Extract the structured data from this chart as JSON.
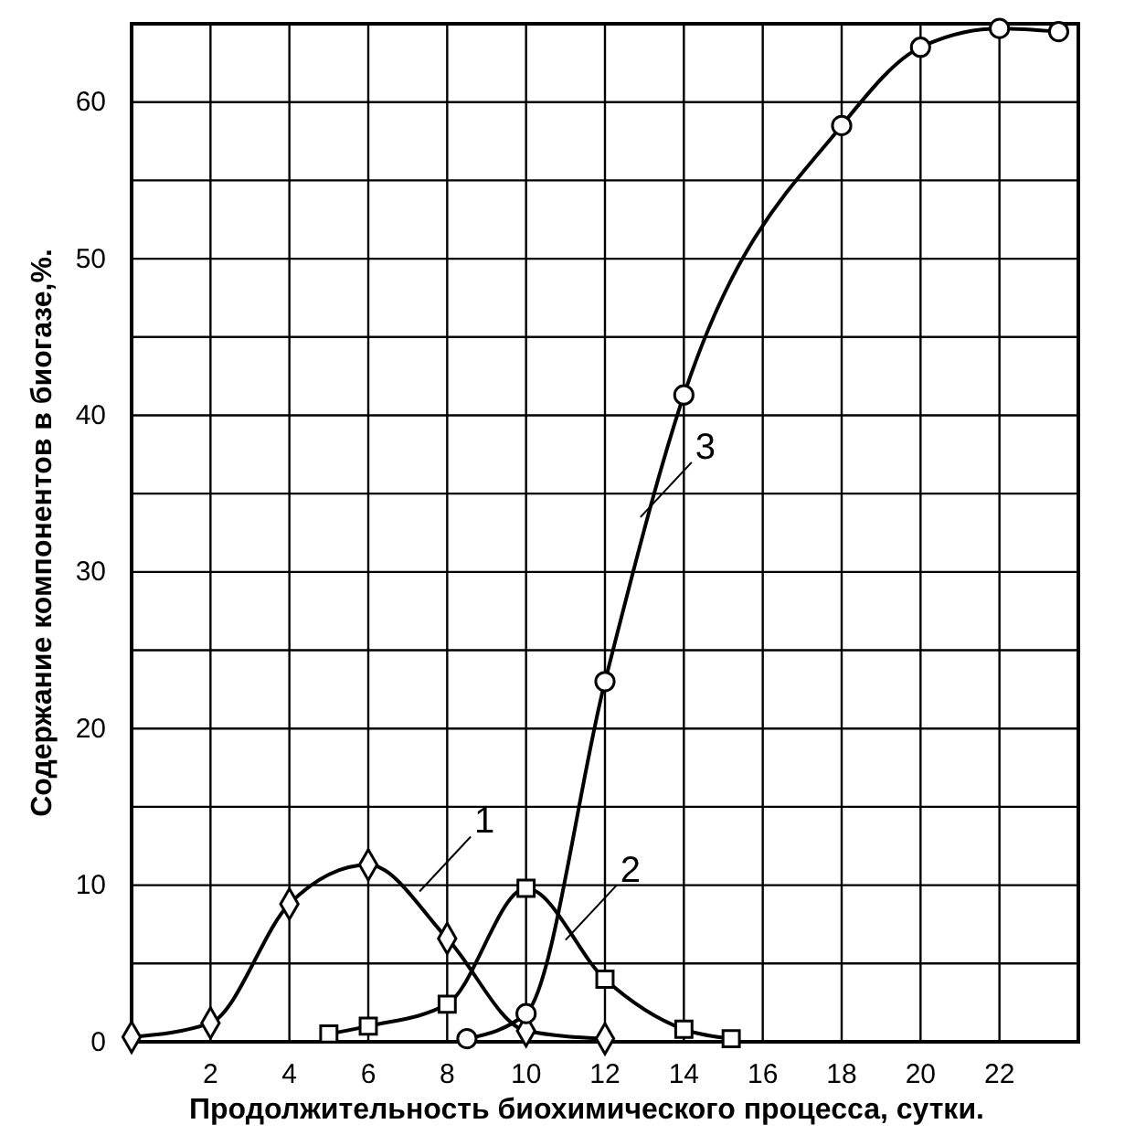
{
  "chart_data": {
    "type": "line",
    "xlabel": "Продолжительность биохимического процесса, сутки.",
    "ylabel": "Содержание компонентов в биогазе,%.",
    "xlim": [
      0,
      24
    ],
    "xticks": [
      2,
      4,
      6,
      8,
      10,
      12,
      14,
      16,
      18,
      20,
      22
    ],
    "ylim": [
      0,
      65
    ],
    "yticks": [
      0,
      {
        "value": 5,
        "label": null
      },
      10,
      {
        "value": 15,
        "label": null
      },
      20,
      {
        "value": 25,
        "label": null
      },
      30,
      {
        "value": 35,
        "label": null
      },
      40,
      {
        "value": 45,
        "label": null
      },
      50,
      {
        "value": 55,
        "label": null
      },
      60
    ],
    "grid": true,
    "line_style": "solid",
    "series": [
      {
        "color": "#000000",
        "marker": "diamond",
        "x": [
          0,
          2,
          4,
          6,
          8,
          10,
          12
        ],
        "values": [
          0.3,
          1.2,
          8.8,
          11.3,
          6.6,
          0.7,
          0.2
        ]
      },
      {
        "color": "#000000",
        "marker": "square",
        "x": [
          5,
          6,
          8,
          10,
          12,
          14,
          15.2
        ],
        "values": [
          0.5,
          1.0,
          2.4,
          9.8,
          4.0,
          0.8,
          0.2
        ]
      },
      {
        "color": "#000000",
        "marker": "circle",
        "x": [
          8.5,
          10,
          12,
          14,
          18,
          20,
          22,
          23.5
        ],
        "values": [
          0.2,
          1.8,
          23,
          41.3,
          58.5,
          63.5,
          64.7,
          64.5
        ]
      }
    ],
    "annotations": [
      {
        "text": "1",
        "x": 7.3,
        "y": 9.6
      },
      {
        "text": "2",
        "x": 11,
        "y": 6.5
      },
      {
        "text": "3",
        "x": 12.9,
        "y": 33.5
      }
    ]
  }
}
